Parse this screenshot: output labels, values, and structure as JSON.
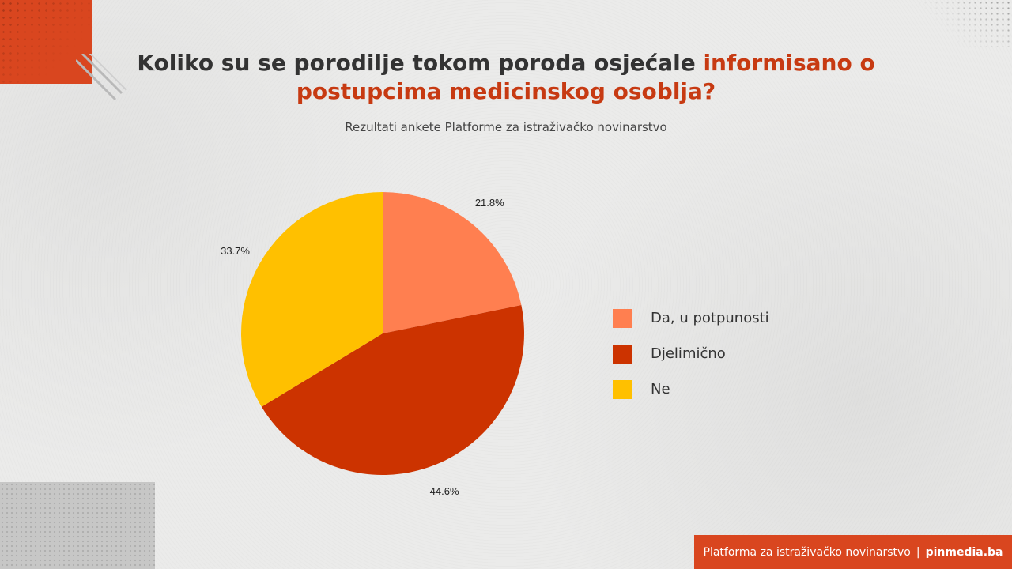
{
  "header": {
    "title_part1": "Koliko su se porodilje tokom poroda osjećale ",
    "title_highlight": "informisano o postupcima medicinskog osoblja?",
    "subtitle": "Rezultati ankete Platforme za istraživačko novinarstvo"
  },
  "footer": {
    "org": "Platforma za istraživačko novinarstvo",
    "separator": "|",
    "site": "pinmedia.ba"
  },
  "colors": {
    "accent": "#d9461f",
    "highlight_text": "#c73a12"
  },
  "chart_data": {
    "type": "pie",
    "categories": [
      "Da, u potpunosti",
      "Djelimično",
      "Ne"
    ],
    "values": [
      21.8,
      44.6,
      33.7
    ],
    "labels": [
      "21.8%",
      "44.6%",
      "33.7%"
    ],
    "colors": [
      "#ff7f50",
      "#cc3300",
      "#ffc000"
    ],
    "legend_position": "right"
  }
}
